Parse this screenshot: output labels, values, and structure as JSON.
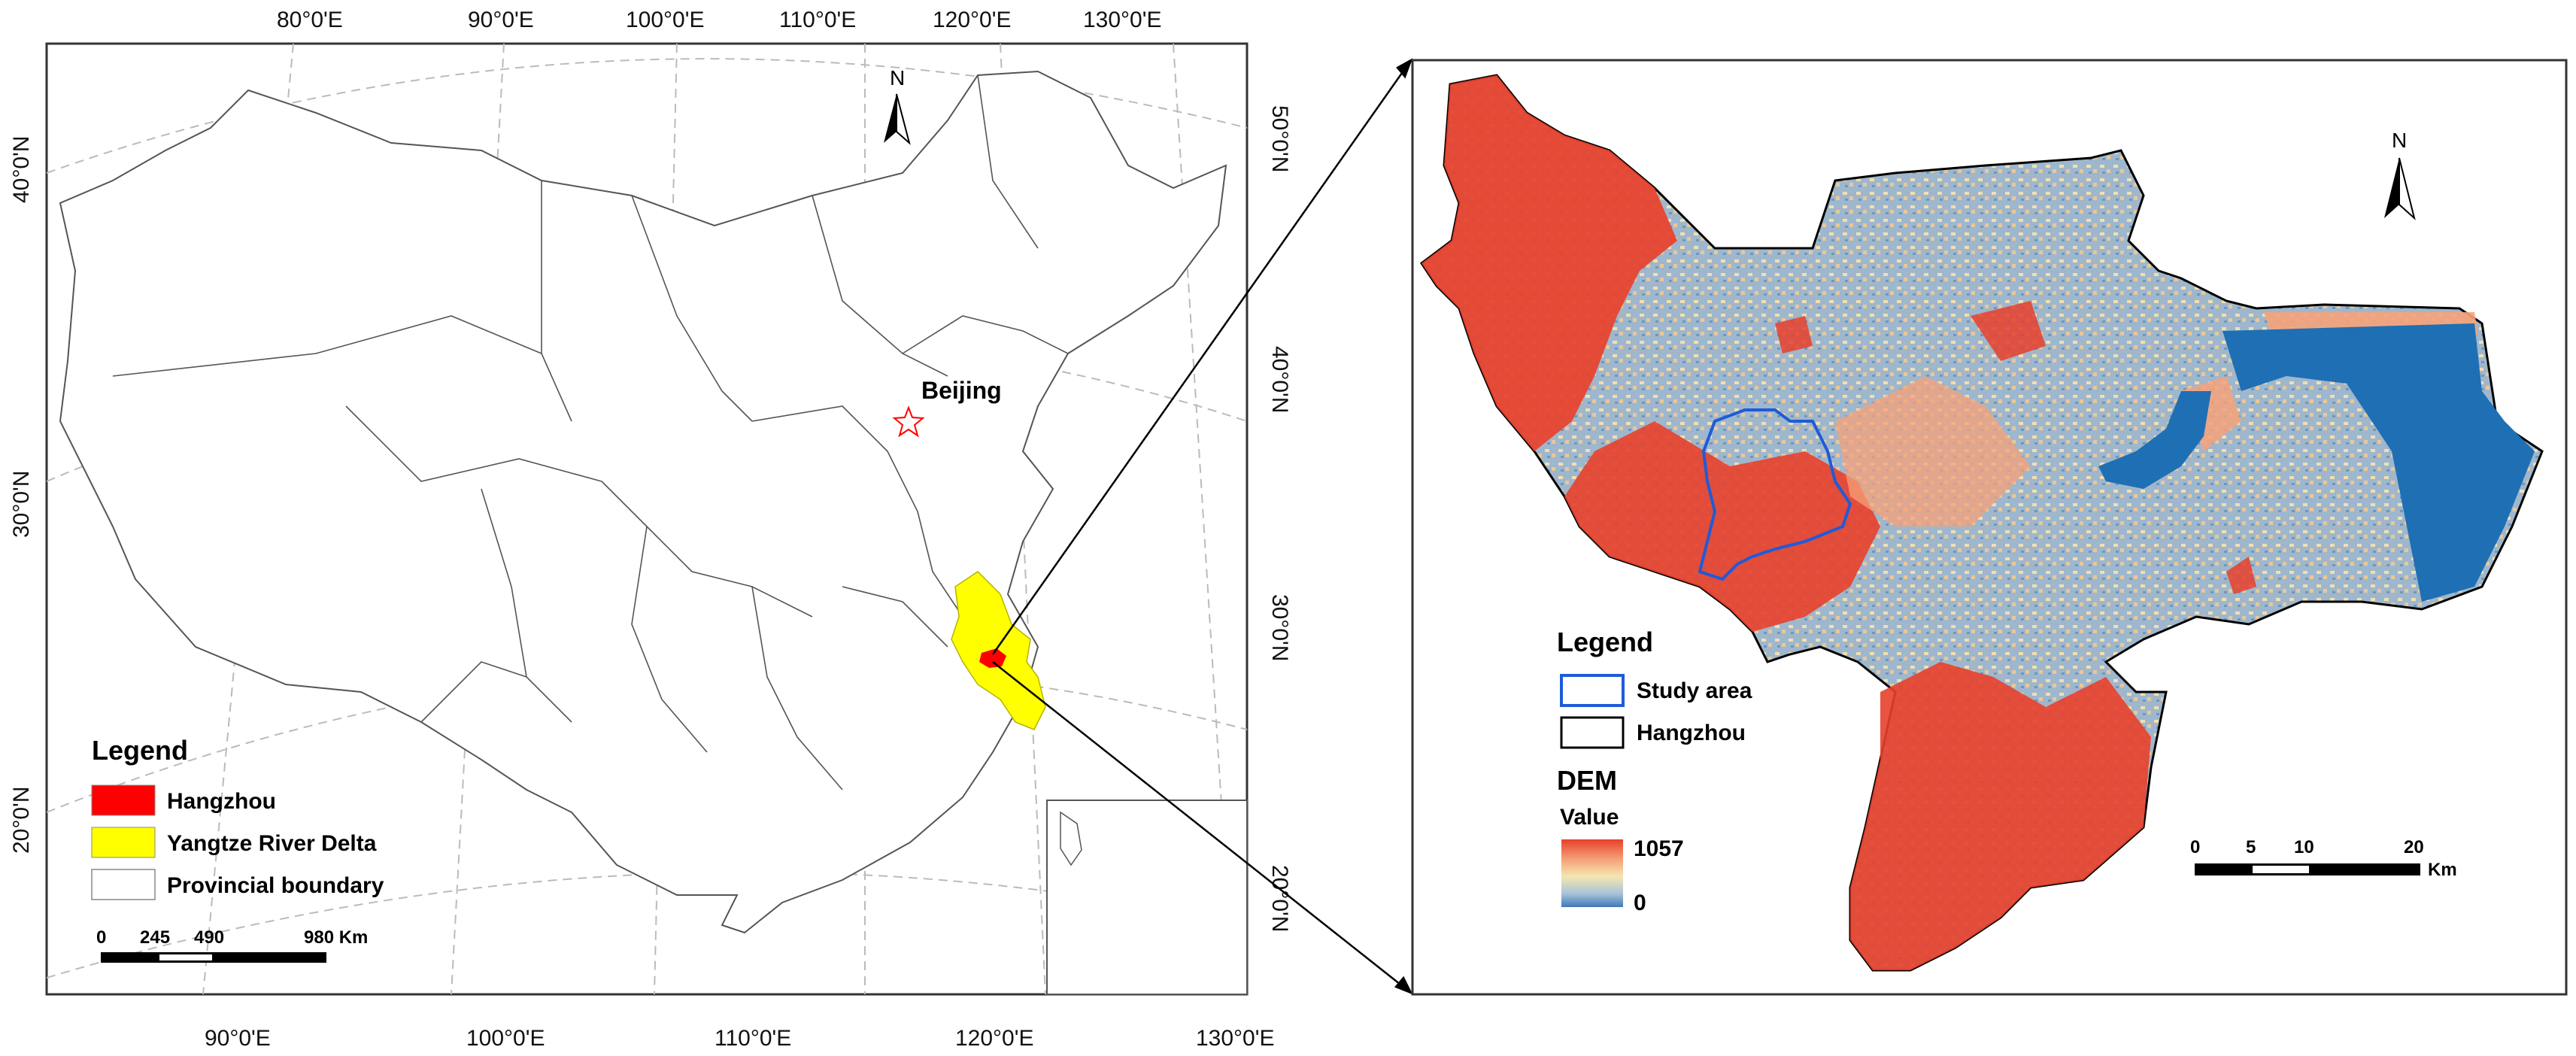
{
  "left_map": {
    "top_lon_labels": [
      "80°0'E",
      "90°0'E",
      "100°0'E",
      "110°0'E",
      "120°0'E",
      "130°0'E"
    ],
    "bottom_lon_labels": [
      "90°0'E",
      "100°0'E",
      "110°0'E",
      "120°0'E",
      "130°0'E"
    ],
    "left_lat_labels": [
      "40°0'N",
      "30°0'N",
      "20°0'N"
    ],
    "right_lat_labels": [
      "50°0'N",
      "40°0'N",
      "30°0'N",
      "20°0'N"
    ],
    "city_label": "Beijing",
    "north_label": "N",
    "legend": {
      "title": "Legend",
      "items": [
        {
          "label": "Hangzhou",
          "color": "#ff0000"
        },
        {
          "label": "Yangtze River Delta",
          "color": "#ffff00"
        },
        {
          "label": "Provincial boundary",
          "color": "#ffffff"
        }
      ]
    },
    "scale_bar": {
      "ticks": [
        "0",
        "245",
        "490",
        "980 Km"
      ]
    }
  },
  "right_map": {
    "north_label": "N",
    "legend": {
      "title": "Legend",
      "items": [
        {
          "label": "Study area",
          "color": "#1f5bd8"
        },
        {
          "label": "Hangzhou",
          "color": "#000000"
        }
      ],
      "dem_title": "DEM",
      "value_label": "Value",
      "max_value": "1057",
      "min_value": "0",
      "ramp_colors": [
        "#e8402b",
        "#f5a27a",
        "#f5e6b0",
        "#a8c4d8",
        "#3f78b8"
      ]
    },
    "scale_bar": {
      "ticks": [
        "0",
        "5",
        "10",
        "20"
      ],
      "unit": "Km"
    }
  }
}
